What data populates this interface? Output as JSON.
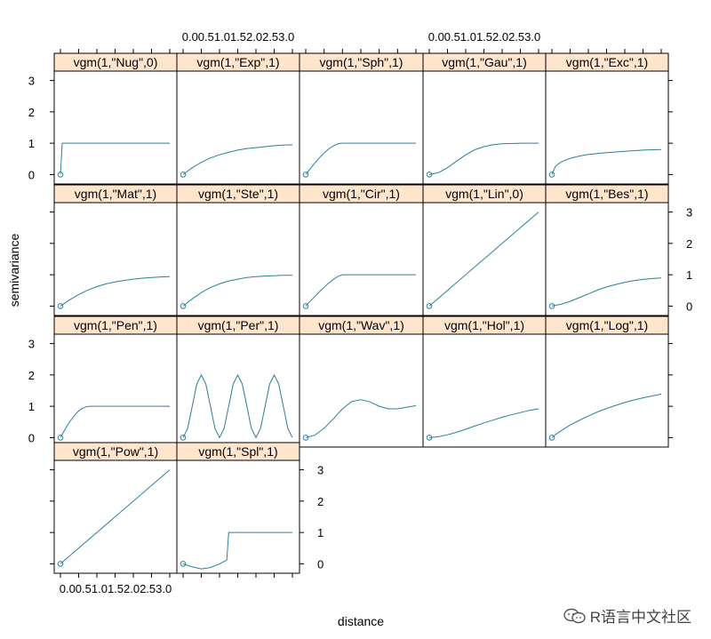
{
  "chart_data": {
    "type": "line",
    "layout": "trellis",
    "xlabel": "distance",
    "ylabel": "semivariance",
    "xlim": [
      0,
      3
    ],
    "ylim": [
      0,
      3
    ],
    "x_ticks": [
      "0.0",
      "0.5",
      "1.0",
      "1.5",
      "2.0",
      "2.5",
      "3.0"
    ],
    "x_tick_row_text": "0.00.51.01.52.02.53.0",
    "y_ticks": [
      0,
      1,
      2,
      3
    ],
    "grid": false,
    "series_color": "#2a7f9a",
    "strip_color": "#ffe5cc",
    "panels": [
      {
        "title": "vgm(1,\"Nug\",0)",
        "x": [
          0,
          0.05,
          3
        ],
        "y": [
          0,
          1,
          1
        ]
      },
      {
        "title": "vgm(1,\"Exp\",1)",
        "x": [
          0,
          0.25,
          0.5,
          0.75,
          1,
          1.25,
          1.5,
          1.75,
          2,
          2.25,
          2.5,
          2.75,
          3
        ],
        "y": [
          0,
          0.22,
          0.39,
          0.53,
          0.63,
          0.71,
          0.78,
          0.83,
          0.86,
          0.89,
          0.92,
          0.94,
          0.95
        ]
      },
      {
        "title": "vgm(1,\"Sph\",1)",
        "x": [
          0,
          0.1,
          0.2,
          0.3,
          0.4,
          0.5,
          0.6,
          0.7,
          0.8,
          0.9,
          1,
          3
        ],
        "y": [
          0,
          0.15,
          0.3,
          0.44,
          0.57,
          0.69,
          0.79,
          0.88,
          0.94,
          0.99,
          1,
          1
        ]
      },
      {
        "title": "vgm(1,\"Gau\",1)",
        "x": [
          0,
          0.25,
          0.5,
          0.75,
          1,
          1.25,
          1.5,
          1.75,
          2,
          2.25,
          2.5,
          3
        ],
        "y": [
          0,
          0.06,
          0.22,
          0.43,
          0.63,
          0.79,
          0.89,
          0.95,
          0.98,
          0.99,
          1,
          1
        ]
      },
      {
        "title": "vgm(1,\"Exc\",1)",
        "x": [
          0,
          0.1,
          0.25,
          0.5,
          0.75,
          1,
          1.5,
          2,
          2.5,
          3
        ],
        "y": [
          0,
          0.27,
          0.4,
          0.52,
          0.59,
          0.64,
          0.7,
          0.74,
          0.78,
          0.8
        ]
      },
      {
        "title": "vgm(1,\"Mat\",1)",
        "x": [
          0,
          0.25,
          0.5,
          0.75,
          1,
          1.25,
          1.5,
          1.75,
          2,
          2.25,
          2.5,
          2.75,
          3
        ],
        "y": [
          0,
          0.2,
          0.37,
          0.51,
          0.62,
          0.71,
          0.77,
          0.82,
          0.86,
          0.89,
          0.91,
          0.93,
          0.94
        ]
      },
      {
        "title": "vgm(1,\"Ste\",1)",
        "x": [
          0,
          0.25,
          0.5,
          0.75,
          1,
          1.25,
          1.5,
          1.75,
          2,
          2.25,
          2.5,
          2.75,
          3
        ],
        "y": [
          0,
          0.23,
          0.43,
          0.59,
          0.71,
          0.8,
          0.86,
          0.91,
          0.94,
          0.96,
          0.97,
          0.98,
          0.98
        ]
      },
      {
        "title": "vgm(1,\"Cir\",1)",
        "x": [
          0,
          0.1,
          0.2,
          0.3,
          0.4,
          0.5,
          0.6,
          0.7,
          0.8,
          0.9,
          1,
          3
        ],
        "y": [
          0,
          0.13,
          0.25,
          0.37,
          0.49,
          0.6,
          0.71,
          0.8,
          0.89,
          0.96,
          1,
          1
        ]
      },
      {
        "title": "vgm(1,\"Lin\",0)",
        "x": [
          0,
          3
        ],
        "y": [
          0,
          3
        ]
      },
      {
        "title": "vgm(1,\"Bes\",1)",
        "x": [
          0,
          0.25,
          0.5,
          0.75,
          1,
          1.25,
          1.5,
          1.75,
          2,
          2.25,
          2.5,
          2.75,
          3
        ],
        "y": [
          0,
          0.06,
          0.15,
          0.27,
          0.39,
          0.51,
          0.61,
          0.69,
          0.76,
          0.81,
          0.85,
          0.88,
          0.9
        ]
      },
      {
        "title": "vgm(1,\"Pen\",1)",
        "x": [
          0,
          0.1,
          0.2,
          0.3,
          0.4,
          0.5,
          0.6,
          0.7,
          0.8,
          0.9,
          1,
          3
        ],
        "y": [
          0,
          0.21,
          0.41,
          0.58,
          0.73,
          0.85,
          0.93,
          0.98,
          1,
          1,
          1,
          1
        ]
      },
      {
        "title": "vgm(1,\"Per\",1)",
        "x": [
          0,
          0.125,
          0.25,
          0.375,
          0.5,
          0.625,
          0.75,
          0.875,
          1,
          1.125,
          1.25,
          1.375,
          1.5,
          1.625,
          1.75,
          1.875,
          2,
          2.125,
          2.25,
          2.375,
          2.5,
          2.625,
          2.75,
          2.875,
          3
        ],
        "y": [
          0,
          0.29,
          1,
          1.71,
          2,
          1.71,
          1,
          0.29,
          0,
          0.29,
          1,
          1.71,
          2,
          1.71,
          1,
          0.29,
          0,
          0.29,
          1,
          1.71,
          2,
          1.71,
          1,
          0.29,
          0
        ]
      },
      {
        "title": "vgm(1,\"Wav\",1)",
        "x": [
          0,
          0.25,
          0.5,
          0.75,
          1,
          1.25,
          1.5,
          1.75,
          2,
          2.25,
          2.5,
          2.75,
          3
        ],
        "y": [
          0,
          0.08,
          0.3,
          0.6,
          0.92,
          1.15,
          1.21,
          1.14,
          1.0,
          0.92,
          0.92,
          0.97,
          1.02
        ]
      },
      {
        "title": "vgm(1,\"Hol\",1)",
        "x": [
          0,
          0.25,
          0.5,
          0.75,
          1,
          1.25,
          1.5,
          1.75,
          2,
          2.25,
          2.5,
          2.75,
          3
        ],
        "y": [
          0,
          0.03,
          0.09,
          0.17,
          0.27,
          0.37,
          0.47,
          0.56,
          0.65,
          0.73,
          0.8,
          0.87,
          0.92
        ]
      },
      {
        "title": "vgm(1,\"Log\",1)",
        "x": [
          0,
          0.1,
          0.25,
          0.5,
          0.75,
          1,
          1.25,
          1.5,
          1.75,
          2,
          2.25,
          2.5,
          2.75,
          3
        ],
        "y": [
          0,
          0.1,
          0.22,
          0.4,
          0.55,
          0.69,
          0.82,
          0.93,
          1.03,
          1.12,
          1.2,
          1.27,
          1.33,
          1.39
        ]
      },
      {
        "title": "vgm(1,\"Pow\",1)",
        "x": [
          0,
          3
        ],
        "y": [
          0,
          3
        ]
      },
      {
        "title": "vgm(1,\"Spl\",1)",
        "x": [
          0,
          0.25,
          0.5,
          0.75,
          1,
          1.2,
          1.25,
          3
        ],
        "y": [
          0,
          -0.1,
          -0.16,
          -0.12,
          0,
          0.12,
          1,
          1
        ]
      }
    ]
  },
  "watermark": {
    "text": "R语言中文社区",
    "icon": "wechat-bubble-icon"
  }
}
